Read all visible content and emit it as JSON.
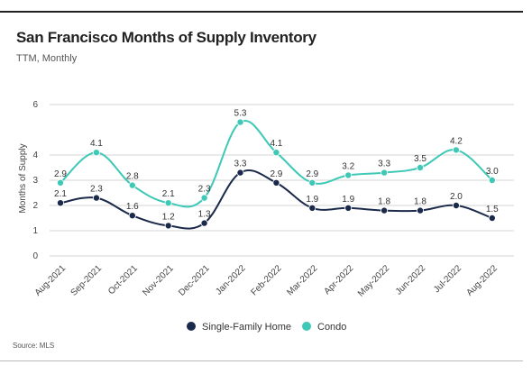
{
  "header": {
    "title": "San Francisco Months of Supply Inventory",
    "subtitle": "TTM, Monthly"
  },
  "footer": {
    "source": "Source: MLS"
  },
  "colors": {
    "sfh": "#1b2a4a",
    "condo": "#3ec8b6",
    "grid": "#d5d5d5"
  },
  "chart_data": {
    "type": "line",
    "categories": [
      "Aug-2021",
      "Sep-2021",
      "Oct-2021",
      "Nov-2021",
      "Dec-2021",
      "Jan-2022",
      "Feb-2022",
      "Mar-2022",
      "Apr-2022",
      "May-2022",
      "Jun-2022",
      "Jul-2022",
      "Aug-2022"
    ],
    "ylabel": "Months of Supply",
    "xlabel": "",
    "ylim": [
      0,
      6
    ],
    "yticks": [
      "0",
      "1",
      "2",
      "3",
      "4",
      "6"
    ],
    "grid": true,
    "legend_position": "bottom-center",
    "series": [
      {
        "name": "Single-Family Home",
        "values": [
          2.1,
          2.3,
          1.6,
          1.2,
          1.3,
          3.3,
          2.9,
          1.9,
          1.9,
          1.8,
          1.8,
          2.0,
          1.5
        ],
        "labels": [
          "2.1",
          "2.3",
          "1.6",
          "1.2",
          "1.3",
          "3.3",
          "2.9",
          "1.9",
          "1.9",
          "1.8",
          "1.8",
          "2.0",
          "1.5"
        ]
      },
      {
        "name": "Condo",
        "values": [
          2.9,
          4.1,
          2.8,
          2.1,
          2.3,
          5.3,
          4.1,
          2.9,
          3.2,
          3.3,
          3.5,
          4.2,
          3.0
        ],
        "labels": [
          "2.9",
          "4.1",
          "2.8",
          "2.1",
          "2.3",
          "5.3",
          "4.1",
          "2.9",
          "3.2",
          "3.3",
          "3.5",
          "4.2",
          "3.0"
        ]
      }
    ]
  }
}
